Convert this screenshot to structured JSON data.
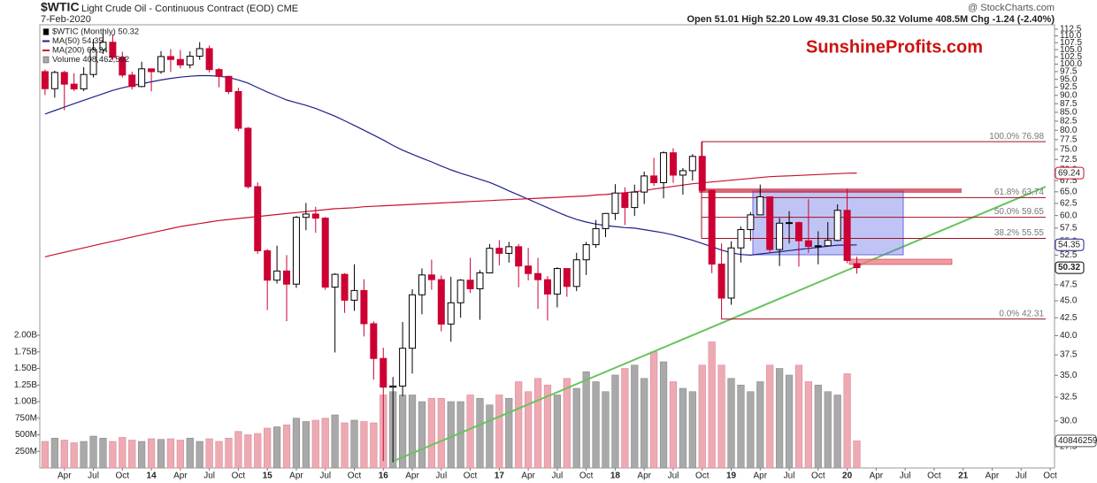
{
  "chart_data": {
    "type": "candlestick",
    "title": "$WTIC",
    "subtitle": "Light Crude Oil - Continuous Contract (EOD) CME",
    "date": "7-Feb-2020",
    "source": "@ StockCharts.com",
    "quote": "Open 51.01  High 52.20  Low 49.31  Close 50.32  Volume 408.5M  Chg -1.24 (-2.40%)",
    "watermark": "SunshineProfits.com",
    "legend": [
      "$WTIC (Monthly) 50.32",
      "MA(50) 54.35",
      "MA(200) 69.24",
      "Volume 408,462,592"
    ],
    "log_scale": true,
    "up_color": "#ffffff",
    "down_color": "#cc0033",
    "x": [
      "2013-02",
      "2013-03",
      "2013-04",
      "2013-05",
      "2013-06",
      "2013-07",
      "2013-08",
      "2013-09",
      "2013-10",
      "2013-11",
      "2013-12",
      "2014-01",
      "2014-02",
      "2014-03",
      "2014-04",
      "2014-05",
      "2014-06",
      "2014-07",
      "2014-08",
      "2014-09",
      "2014-10",
      "2014-11",
      "2014-12",
      "2015-01",
      "2015-02",
      "2015-03",
      "2015-04",
      "2015-05",
      "2015-06",
      "2015-07",
      "2015-08",
      "2015-09",
      "2015-10",
      "2015-11",
      "2015-12",
      "2016-01",
      "2016-02",
      "2016-03",
      "2016-04",
      "2016-05",
      "2016-06",
      "2016-07",
      "2016-08",
      "2016-09",
      "2016-10",
      "2016-11",
      "2016-12",
      "2017-01",
      "2017-02",
      "2017-03",
      "2017-04",
      "2017-05",
      "2017-06",
      "2017-07",
      "2017-08",
      "2017-09",
      "2017-10",
      "2017-11",
      "2017-12",
      "2018-01",
      "2018-02",
      "2018-03",
      "2018-04",
      "2018-05",
      "2018-06",
      "2018-07",
      "2018-08",
      "2018-09",
      "2018-10",
      "2018-11",
      "2018-12",
      "2019-01",
      "2019-02",
      "2019-03",
      "2019-04",
      "2019-05",
      "2019-06",
      "2019-07",
      "2019-08",
      "2019-09",
      "2019-10",
      "2019-11",
      "2019-12",
      "2020-01",
      "2020-02"
    ],
    "open": [
      97.5,
      92.05,
      97.23,
      93.46,
      91.97,
      96.56,
      105.03,
      107.65,
      102.33,
      96.38,
      92.72,
      98.42,
      97.49,
      102.59,
      101.58,
      99.74,
      102.71,
      105.37,
      98.17,
      95.96,
      91.16,
      80.54,
      66.15,
      53.27,
      48.24,
      49.76,
      47.6,
      59.63,
      60.3,
      59.47,
      47.12,
      49.2,
      45.09,
      46.59,
      41.65,
      37.04,
      33.62,
      33.75,
      38.34,
      45.92,
      49.1,
      48.33,
      41.6,
      44.7,
      48.24,
      46.86,
      49.44,
      53.72,
      52.81,
      54.01,
      50.6,
      49.33,
      48.32,
      46.04,
      50.17,
      47.23,
      51.67,
      54.38,
      57.4,
      60.42,
      64.73,
      61.64,
      64.94,
      68.57,
      67.04,
      74.15,
      68.76,
      69.8,
      73.25,
      65.31,
      50.93,
      45.41,
      53.79,
      57.22,
      60.14,
      63.91,
      53.5,
      58.47,
      58.58,
      55.1,
      54.07,
      54.18,
      55.17,
      61.06,
      51.01
    ],
    "high": [
      98.2,
      97.8,
      97.8,
      97.0,
      99.0,
      108.9,
      112.2,
      110.7,
      104.3,
      97.5,
      100.8,
      98.5,
      104.5,
      105.2,
      104.9,
      104.4,
      107.7,
      106.5,
      98.7,
      96.0,
      92.3,
      80.9,
      67.1,
      53.6,
      54.2,
      52.5,
      59.9,
      62.6,
      61.8,
      59.7,
      49.4,
      49.4,
      50.9,
      48.4,
      42.0,
      38.4,
      34.8,
      41.9,
      46.8,
      50.2,
      51.7,
      49.0,
      48.8,
      48.4,
      52.0,
      49.9,
      54.5,
      55.2,
      54.9,
      54.5,
      53.8,
      52.0,
      48.9,
      50.4,
      50.2,
      52.9,
      54.9,
      59.1,
      60.5,
      66.7,
      66.0,
      66.6,
      69.6,
      72.9,
      74.5,
      75.3,
      70.4,
      73.8,
      76.9,
      65.5,
      54.6,
      55.0,
      57.8,
      60.7,
      66.6,
      63.9,
      59.5,
      60.9,
      58.8,
      63.4,
      56.9,
      58.7,
      62.3,
      65.7,
      52.2
    ],
    "low": [
      90.1,
      89.3,
      85.6,
      91.3,
      91.3,
      95.6,
      103.5,
      101.3,
      95.6,
      91.8,
      92.5,
      91.2,
      96.8,
      97.4,
      98.6,
      98.6,
      101.5,
      97.2,
      92.5,
      90.4,
      79.8,
      65.7,
      52.7,
      43.6,
      47.7,
      42.0,
      47.0,
      57.1,
      56.6,
      46.7,
      37.8,
      43.2,
      43.5,
      39.9,
      34.5,
      26.2,
      26.1,
      32.6,
      35.2,
      43.0,
      46.7,
      40.6,
      39.2,
      42.5,
      46.2,
      42.2,
      49.4,
      50.7,
      51.2,
      47.1,
      48.2,
      43.8,
      42.1,
      44.0,
      45.6,
      46.5,
      49.1,
      53.8,
      55.8,
      59.1,
      58.1,
      59.9,
      62.4,
      66.3,
      63.6,
      67.0,
      64.4,
      67.5,
      64.9,
      49.4,
      42.4,
      44.4,
      51.2,
      55.1,
      60.2,
      53.0,
      50.6,
      54.6,
      50.5,
      52.9,
      50.9,
      54.0,
      55.0,
      51.1,
      49.31
    ],
    "close": [
      92.05,
      97.23,
      93.46,
      91.97,
      96.56,
      105.03,
      107.65,
      102.33,
      96.38,
      92.72,
      98.42,
      97.49,
      102.59,
      101.58,
      99.74,
      102.71,
      105.37,
      98.17,
      95.96,
      91.16,
      80.54,
      66.15,
      53.27,
      48.24,
      49.76,
      47.6,
      59.63,
      60.3,
      59.47,
      47.12,
      49.2,
      45.09,
      46.59,
      41.65,
      37.04,
      33.62,
      33.75,
      38.34,
      45.92,
      49.1,
      48.33,
      41.6,
      44.7,
      48.24,
      46.86,
      49.44,
      53.72,
      52.81,
      54.01,
      50.6,
      49.33,
      48.32,
      46.04,
      50.17,
      47.23,
      51.67,
      54.38,
      57.4,
      60.42,
      64.73,
      61.64,
      64.94,
      68.57,
      67.04,
      74.15,
      68.76,
      69.8,
      73.25,
      65.31,
      50.93,
      45.41,
      53.79,
      57.22,
      60.14,
      63.91,
      53.5,
      58.47,
      58.58,
      55.1,
      54.07,
      54.18,
      55.17,
      61.06,
      51.56,
      50.32
    ],
    "series": [
      {
        "name": "MA(50)",
        "color": "#1f1f8f",
        "values": [
          84.5,
          85.5,
          86.5,
          87.5,
          88.5,
          89.5,
          90.5,
          91.5,
          92.3,
          93.0,
          93.6,
          94.2,
          94.8,
          95.3,
          95.7,
          96.0,
          96.2,
          96.2,
          96.0,
          95.6,
          94.8,
          93.8,
          92.4,
          91.0,
          89.8,
          88.6,
          87.8,
          87.0,
          86.1,
          85.0,
          83.9,
          82.6,
          81.3,
          80.0,
          78.7,
          77.4,
          76.0,
          74.8,
          73.8,
          72.8,
          71.9,
          70.9,
          70.0,
          69.2,
          68.5,
          67.8,
          67.1,
          66.2,
          65.2,
          64.3,
          63.4,
          62.5,
          61.6,
          60.7,
          59.9,
          59.2,
          58.7,
          58.3,
          58.0,
          57.8,
          57.6,
          57.5,
          57.2,
          56.9,
          56.6,
          56.2,
          55.7,
          55.2,
          54.6,
          54.0,
          53.4,
          52.9,
          52.6,
          52.5,
          52.7,
          52.9,
          53.1,
          53.3,
          53.5,
          53.7,
          53.9,
          54.1,
          54.3,
          54.3,
          54.35
        ]
      },
      {
        "name": "MA(200)",
        "color": "#c8102e",
        "values": [
          52.2,
          52.6,
          53.0,
          53.4,
          53.8,
          54.2,
          54.6,
          55.0,
          55.4,
          55.8,
          56.2,
          56.6,
          57.0,
          57.4,
          57.8,
          58.1,
          58.4,
          58.7,
          59.0,
          59.2,
          59.4,
          59.6,
          59.8,
          60.0,
          60.2,
          60.4,
          60.6,
          60.8,
          61.0,
          61.2,
          61.4,
          61.5,
          61.6,
          61.8,
          61.9,
          62.0,
          62.1,
          62.2,
          62.3,
          62.4,
          62.5,
          62.6,
          62.7,
          62.8,
          62.9,
          63.0,
          63.1,
          63.2,
          63.3,
          63.4,
          63.5,
          63.6,
          63.7,
          63.8,
          63.9,
          64.0,
          64.1,
          64.3,
          64.4,
          64.6,
          64.8,
          65.0,
          65.3,
          65.6,
          65.9,
          66.2,
          66.5,
          66.8,
          67.0,
          67.2,
          67.4,
          67.6,
          67.8,
          68.0,
          68.2,
          68.4,
          68.5,
          68.6,
          68.7,
          68.8,
          68.9,
          69.0,
          69.1,
          69.2,
          69.24
        ]
      }
    ],
    "volume": {
      "up_color": "#a9a9a9",
      "down_color": "#eeaab3",
      "values": [
        400000000,
        450000000,
        420000000,
        380000000,
        400000000,
        480000000,
        450000000,
        400000000,
        460000000,
        420000000,
        400000000,
        440000000,
        430000000,
        440000000,
        420000000,
        450000000,
        400000000,
        440000000,
        400000000,
        450000000,
        550000000,
        500000000,
        520000000,
        600000000,
        620000000,
        650000000,
        750000000,
        700000000,
        720000000,
        750000000,
        800000000,
        680000000,
        720000000,
        700000000,
        680000000,
        1100000000,
        1150000000,
        1100000000,
        1100000000,
        1000000000,
        1050000000,
        1050000000,
        1000000000,
        1000000000,
        1100000000,
        1050000000,
        950000000,
        1100000000,
        1050000000,
        1300000000,
        1150000000,
        1350000000,
        1250000000,
        1100000000,
        1350000000,
        1200000000,
        1450000000,
        1300000000,
        1150000000,
        1400000000,
        1500000000,
        1550000000,
        1350000000,
        1750000000,
        1600000000,
        1300000000,
        1200000000,
        1150000000,
        1550000000,
        1900000000,
        1550000000,
        1350000000,
        1250000000,
        1150000000,
        1300000000,
        1550000000,
        1500000000,
        1400000000,
        1550000000,
        1300000000,
        1250000000,
        1150000000,
        1100000000,
        1420000000,
        408462592
      ]
    },
    "fib": [
      {
        "value": 76.98,
        "label": "100.0% 76.98"
      },
      {
        "value": 63.74,
        "label": "61.8% 63.74"
      },
      {
        "value": 59.65,
        "label": "50.0% 59.65"
      },
      {
        "value": 55.55,
        "label": "38.2% 55.55"
      },
      {
        "value": 42.31,
        "label": "0.0% 42.31"
      }
    ],
    "ylim": [
      25.6,
      114.2
    ],
    "yticks": [
      112.5,
      {
        "value": 110,
        "label": "110.0"
      },
      107.5,
      {
        "value": 105,
        "label": "105.0"
      },
      102.5,
      {
        "value": 100,
        "label": "100.0"
      },
      97.5,
      {
        "value": 95,
        "label": "95.0"
      },
      92.5,
      {
        "value": 90,
        "label": "90.0"
      },
      87.5,
      {
        "value": 85,
        "label": "85.0"
      },
      82.5,
      {
        "value": 80,
        "label": "80.0"
      },
      77.5,
      {
        "value": 75,
        "label": "75.0"
      },
      72.5,
      {
        "value": 70,
        "label": "70.0"
      },
      67.5,
      {
        "value": 65,
        "label": "65.0"
      },
      62.5,
      {
        "value": 60,
        "label": "60.0"
      },
      57.5,
      {
        "value": 55,
        "label": "55.0"
      },
      52.5,
      {
        "value": 50,
        "label": "50.0"
      },
      47.5,
      {
        "value": 45,
        "label": "45.0"
      },
      42.5,
      {
        "value": 40,
        "label": "40.0"
      },
      37.5,
      {
        "value": 35,
        "label": "35.0"
      },
      32.5,
      {
        "value": 30,
        "label": "30.0"
      },
      27.5
    ],
    "y2lim": [
      0,
      6680000000
    ],
    "y2ticks": [
      {
        "value": 250000000,
        "label": "250M"
      },
      {
        "value": 500000000,
        "label": "500M"
      },
      {
        "value": 750000000,
        "label": "750M"
      },
      {
        "value": 1000000000,
        "label": "1.00B"
      },
      {
        "value": 1250000000,
        "label": "1.25B"
      },
      {
        "value": 1500000000,
        "label": "1.50B"
      },
      {
        "value": 1750000000,
        "label": "1.75B"
      },
      {
        "value": 2000000000,
        "label": "2.00B"
      }
    ],
    "xlim": [
      "2013-01",
      "2021-10"
    ],
    "xticks": [
      {
        "value": "2013-04",
        "label": "Apr"
      },
      {
        "value": "2013-07",
        "label": "Jul"
      },
      {
        "value": "2013-10",
        "label": "Oct"
      },
      {
        "value": "2014-01",
        "label": "14"
      },
      {
        "value": "2014-04",
        "label": "Apr"
      },
      {
        "value": "2014-07",
        "label": "Jul"
      },
      {
        "value": "2014-10",
        "label": "Oct"
      },
      {
        "value": "2015-01",
        "label": "15"
      },
      {
        "value": "2015-04",
        "label": "Apr"
      },
      {
        "value": "2015-07",
        "label": "Jul"
      },
      {
        "value": "2015-10",
        "label": "Oct"
      },
      {
        "value": "2016-01",
        "label": "16"
      },
      {
        "value": "2016-04",
        "label": "Apr"
      },
      {
        "value": "2016-07",
        "label": "Jul"
      },
      {
        "value": "2016-10",
        "label": "Oct"
      },
      {
        "value": "2017-01",
        "label": "17"
      },
      {
        "value": "2017-04",
        "label": "Apr"
      },
      {
        "value": "2017-07",
        "label": "Jul"
      },
      {
        "value": "2017-10",
        "label": "Oct"
      },
      {
        "value": "2018-01",
        "label": "18"
      },
      {
        "value": "2018-04",
        "label": "Apr"
      },
      {
        "value": "2018-07",
        "label": "Jul"
      },
      {
        "value": "2018-10",
        "label": "Oct"
      },
      {
        "value": "2019-01",
        "label": "19"
      },
      {
        "value": "2019-04",
        "label": "Apr"
      },
      {
        "value": "2019-07",
        "label": "Jul"
      },
      {
        "value": "2019-10",
        "label": "Oct"
      },
      {
        "value": "2020-01",
        "label": "20"
      },
      {
        "value": "2020-04",
        "label": "Apr"
      },
      {
        "value": "2020-07",
        "label": "Jul"
      },
      {
        "value": "2020-10",
        "label": "Oct"
      },
      {
        "value": "2021-01",
        "label": "21"
      },
      {
        "value": "2021-04",
        "label": "Apr"
      },
      {
        "value": "2021-07",
        "label": "Jul"
      },
      {
        "value": "2021-10",
        "label": "Oct"
      }
    ]
  }
}
